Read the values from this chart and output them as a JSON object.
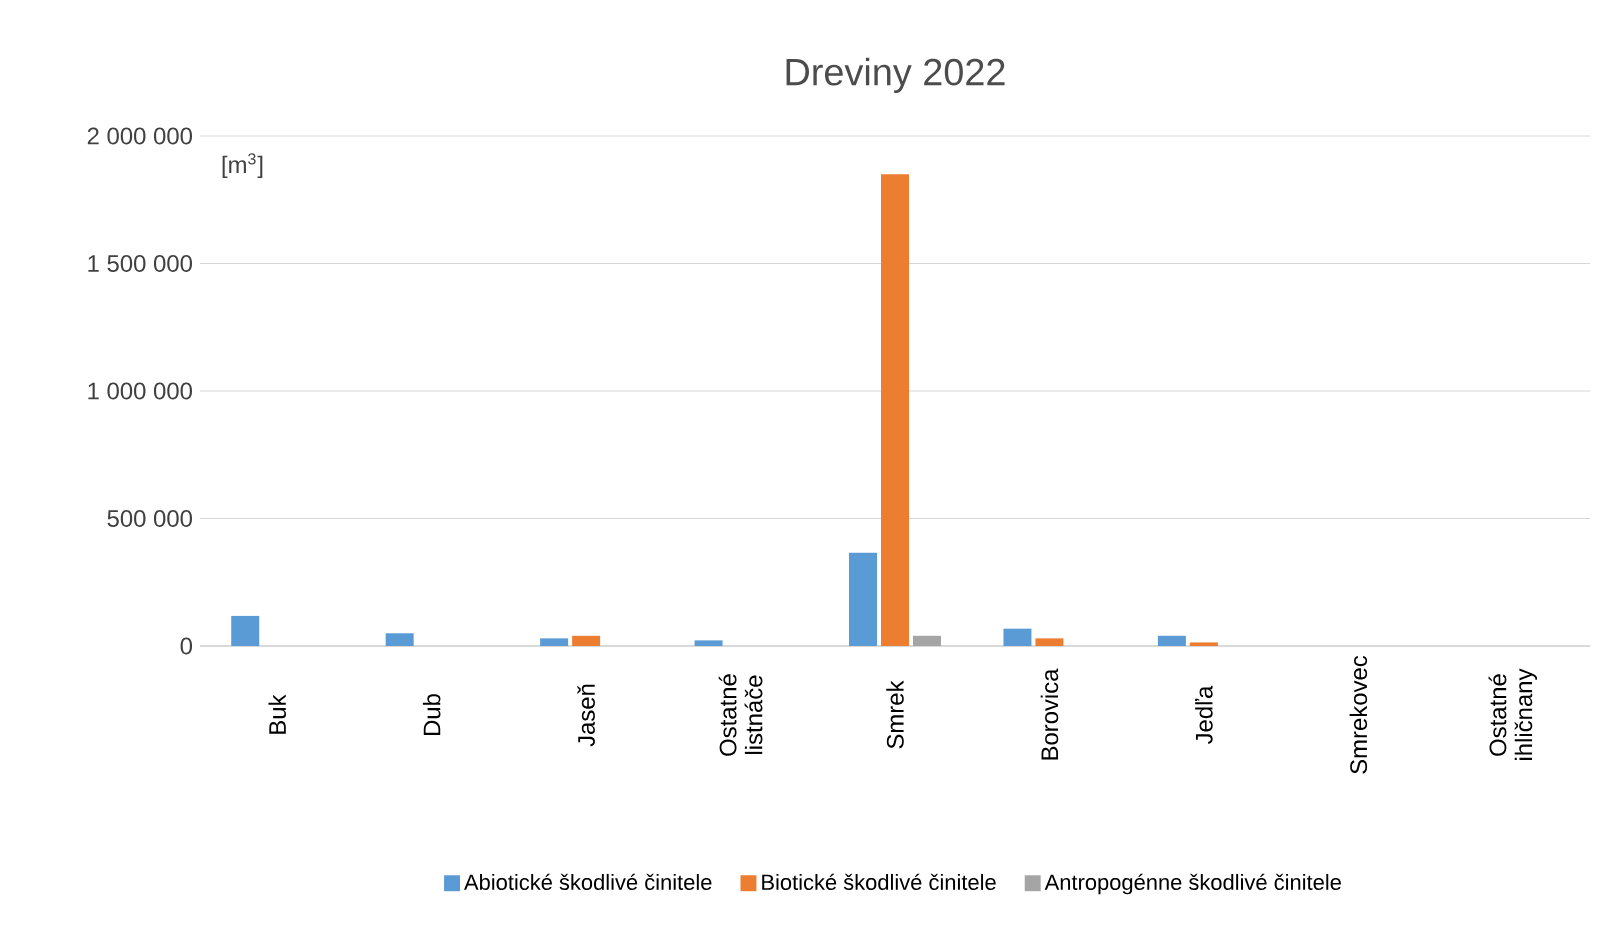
{
  "chart_data": {
    "type": "bar",
    "title": "Dreviny 2022",
    "ylabel": "[m$^{3}$]",
    "categories": [
      "Buk",
      "Dub",
      "Jaseň",
      "Ostatné listnáče",
      "Smrek",
      "Borovica",
      "Jedľa",
      "Smrekovec",
      "Ostatné ihličnany"
    ],
    "series": [
      {
        "name": "Abiotické škodlivé činitele",
        "color": "#5b9bd5",
        "values": [
          118000,
          50000,
          30000,
          22000,
          366000,
          68000,
          40000,
          0,
          0
        ]
      },
      {
        "name": "Biotické škodlivé činitele",
        "color": "#ed7d31",
        "values": [
          0,
          0,
          40000,
          0,
          1850000,
          30000,
          14000,
          0,
          0
        ]
      },
      {
        "name": "Antropogénne škodlivé činitele",
        "color": "#a5a5a5",
        "values": [
          0,
          0,
          0,
          0,
          40000,
          0,
          0,
          0,
          0
        ]
      }
    ],
    "ylim": [
      0,
      2000000
    ],
    "yticks": [
      0,
      {
        "value": 500000,
        "label": "500 000"
      },
      {
        "value": 1000000,
        "label": "1 000 000"
      },
      {
        "value": 1500000,
        "label": "1 500 000"
      },
      {
        "value": 2000000,
        "label": "2 000 000"
      }
    ],
    "grid": "y",
    "legend": "bottom"
  }
}
